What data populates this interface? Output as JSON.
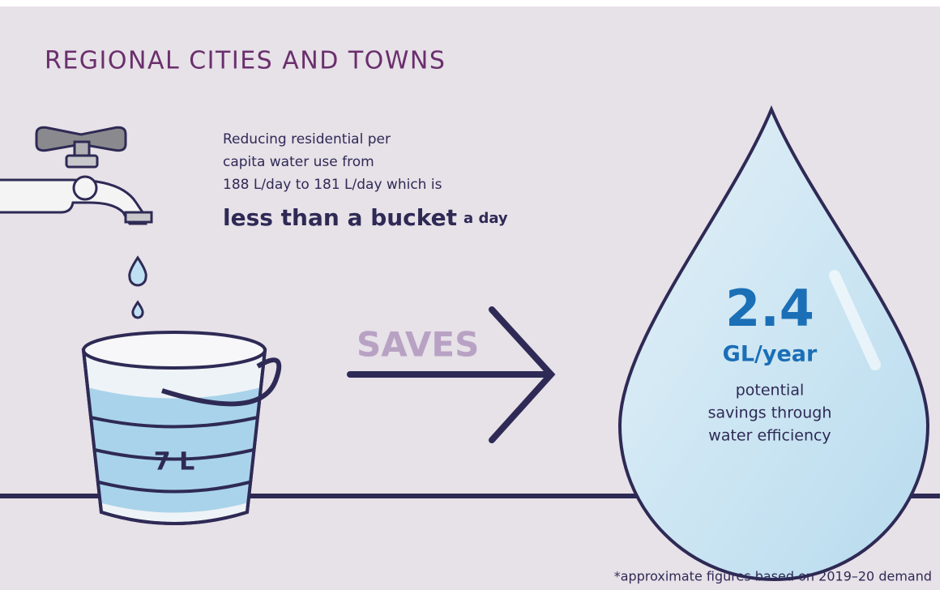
{
  "header": {
    "title": "REGIONAL CITIES AND TOWNS"
  },
  "description": {
    "lines": [
      "Reducing residential per",
      "capita water use from",
      "188 L/day to 181 L/day which is"
    ],
    "emphasis": "less than a bucket",
    "emphasis_suffix": "a day"
  },
  "bucket": {
    "label": "7 L"
  },
  "arrow": {
    "label": "SAVES"
  },
  "drop": {
    "value": "2.4",
    "unit": "GL/year",
    "caption": [
      "potential",
      "savings through",
      "water efficiency"
    ]
  },
  "footnote": "*approximate figures based on 2019–20 demand"
}
